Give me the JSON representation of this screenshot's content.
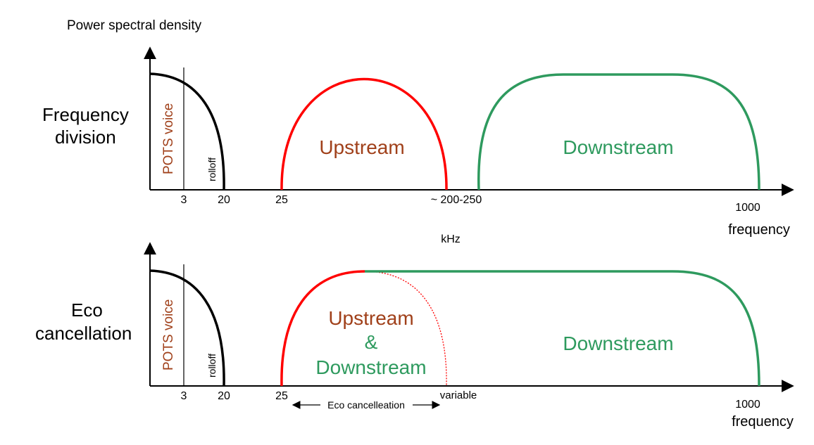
{
  "y_axis_label": "Power spectral density",
  "x_unit": "kHz",
  "colors": {
    "axis": "#000000",
    "voice_curve": "#000000",
    "upstream": "#ff0000",
    "downstream": "#2e9a5e",
    "upstream_text": "#a0401a",
    "downstream_text": "#2e9a5e",
    "pots_text": "#a0401a"
  },
  "panels": [
    {
      "title_line1": "Frequency",
      "title_line2": "division",
      "pots_label": "POTS voice",
      "rolloff_label": "rolloff",
      "ticks": {
        "t3": "3",
        "t20": "20",
        "t25": "25",
        "upper": "~ 200-250",
        "t1000": "1000"
      },
      "x_axis_label": "frequency",
      "bands": [
        {
          "label": "Upstream",
          "kind": "upstream"
        },
        {
          "label": "Downstream",
          "kind": "downstream"
        }
      ]
    },
    {
      "title_line1": "Eco",
      "title_line2": "cancellation",
      "pots_label": "POTS voice",
      "rolloff_label": "rolloff",
      "ticks": {
        "t3": "3",
        "t20": "20",
        "t25": "25",
        "upper": "variable",
        "t1000": "1000"
      },
      "x_axis_label": "frequency",
      "bands": [
        {
          "label_line1": "Upstream",
          "label_line2": "&",
          "label_line3": "Downstream",
          "kind": "overlap"
        },
        {
          "label": "Downstream",
          "kind": "downstream"
        }
      ],
      "range_label": "Eco cancelleation"
    }
  ]
}
